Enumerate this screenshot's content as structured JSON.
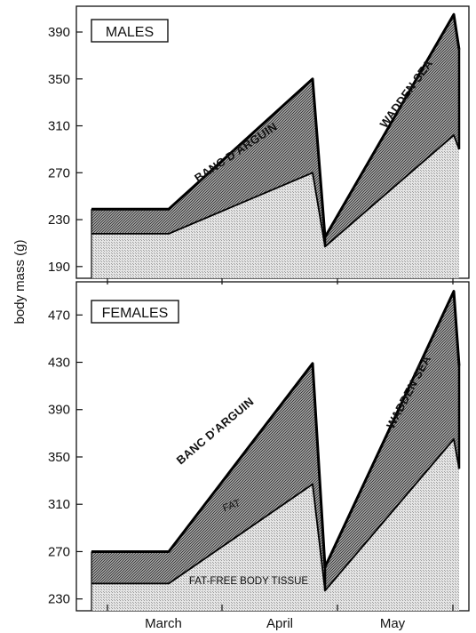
{
  "chart_data": [
    {
      "type": "area",
      "panel_label": "MALES",
      "ylabel": "body mass (g)",
      "x_categories": [
        "March",
        "April",
        "May"
      ],
      "yticks": [
        190,
        230,
        270,
        310,
        350,
        390
      ],
      "ylim": [
        180,
        412
      ],
      "x": [
        "Feb 25",
        "Mar 8",
        "Apr 25",
        "Apr 28",
        "May 28",
        "May 31"
      ],
      "series": [
        {
          "name": "FAT-FREE BODY TISSUE",
          "values": [
            218,
            218,
            270,
            207,
            302,
            290
          ]
        },
        {
          "name": "FAT",
          "values": [
            239,
            239,
            350,
            215,
            405,
            375
          ]
        }
      ],
      "annotations": [
        "BANC D'ARGUIN",
        "WADDEN SEA"
      ]
    },
    {
      "type": "area",
      "panel_label": "FEMALES",
      "ylabel": "body mass (g)",
      "x_categories": [
        "March",
        "April",
        "May"
      ],
      "yticks": [
        230,
        270,
        310,
        350,
        390,
        430,
        470
      ],
      "ylim": [
        220,
        498
      ],
      "x": [
        "Feb 25",
        "Mar 8",
        "Apr 25",
        "Apr 28",
        "May 28",
        "May 31"
      ],
      "series": [
        {
          "name": "FAT-FREE BODY TISSUE",
          "values": [
            243,
            243,
            327,
            237,
            365,
            340
          ]
        },
        {
          "name": "FAT",
          "values": [
            270,
            270,
            429,
            257,
            490,
            427
          ]
        }
      ],
      "annotations": [
        "BANC D'ARGUIN",
        "WADDEN SEA",
        "FAT",
        "FAT-FREE BODY TISSUE"
      ]
    }
  ],
  "colors": {
    "fat_fill": "#8a8a8a",
    "lean_fill": "#dcdcdc",
    "line": "#000000"
  }
}
